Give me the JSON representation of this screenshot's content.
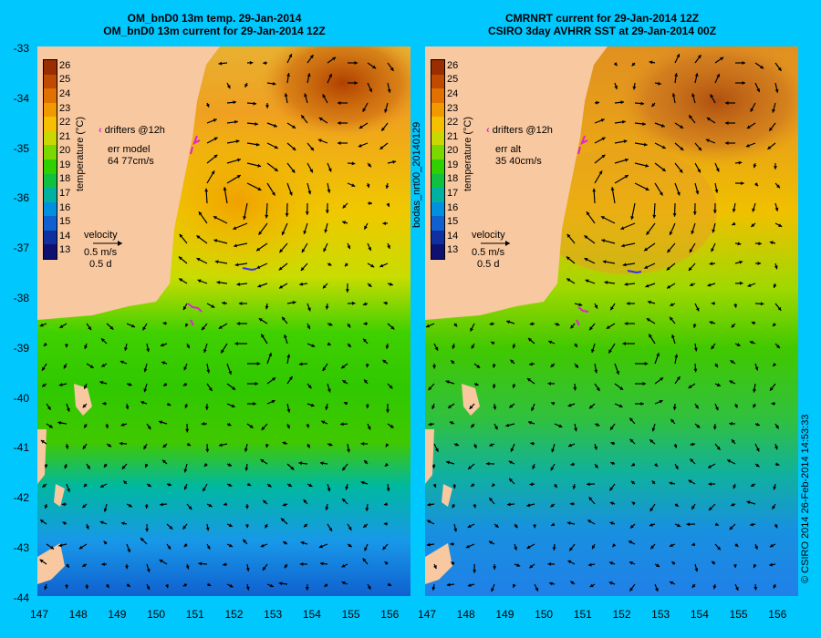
{
  "left_panel": {
    "title_line1": "OM_bnD0 13m temp. 29-Jan-2014",
    "title_line2": "OM_bnD0 13m current for 29-Jan-2014 12Z",
    "legend_drifters": "drifters @12h",
    "legend_err_label": "err model",
    "legend_err_value": "64 77cm/s",
    "legend_velocity": "velocity",
    "legend_speed": "0.5 m/s",
    "legend_time": "0.5 d"
  },
  "right_panel": {
    "title_line1": "CMRNRT current for 29-Jan-2014 12Z",
    "title_line2": "CSIRO 3day AVHRR SST at 29-Jan-2014 00Z",
    "legend_drifters": "drifters @12h",
    "legend_err_label": "err alt",
    "legend_err_value": "35 40cm/s",
    "legend_velocity": "velocity",
    "legend_speed": "0.5 m/s",
    "legend_time": "0.5 d"
  },
  "colorbar": {
    "title": "temperature (°C)",
    "ticks": [
      "26",
      "25",
      "24",
      "23",
      "22",
      "21",
      "20",
      "19",
      "18",
      "17",
      "16",
      "15",
      "14",
      "13"
    ],
    "colors": [
      "#9a2e00",
      "#c04a00",
      "#e07000",
      "#f09a00",
      "#f5c000",
      "#c8d800",
      "#7ad800",
      "#30d000",
      "#10c040",
      "#00b0a0",
      "#0090e0",
      "#1060d0",
      "#1030a0",
      "#101070"
    ]
  },
  "axes": {
    "lat_labels": [
      "-33",
      "-34",
      "-35",
      "-36",
      "-37",
      "-38",
      "-39",
      "-40",
      "-41",
      "-42",
      "-43",
      "-44"
    ],
    "lon_labels": [
      "147",
      "148",
      "149",
      "150",
      "151",
      "152",
      "153",
      "154",
      "155",
      "156"
    ]
  },
  "side_labels": {
    "middle": "bodas_nrt00_20140129",
    "right": "© CSIRO 2014   26-Feb-2014 14:53:33"
  },
  "colors": {
    "background": "#00c8ff",
    "land": "#f8c8a0",
    "drifter": "#e020e0",
    "drifter_blue": "#3030ff"
  }
}
